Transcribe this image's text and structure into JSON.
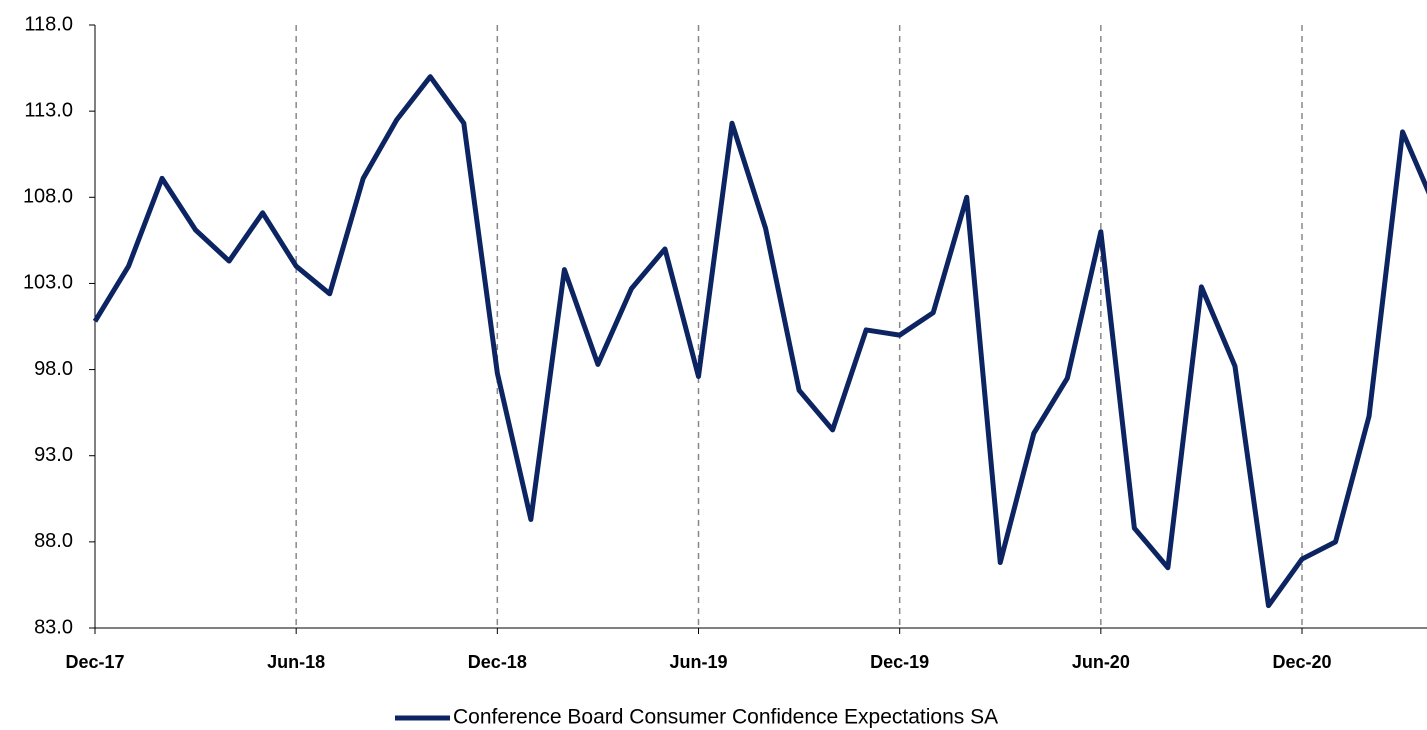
{
  "chart_data": {
    "type": "line",
    "categories": [
      "Dec-17",
      null,
      null,
      null,
      null,
      null,
      "Jun-18",
      null,
      null,
      null,
      null,
      null,
      "Dec-18",
      null,
      null,
      null,
      null,
      null,
      "Jun-19",
      null,
      null,
      null,
      null,
      null,
      "Dec-19",
      null,
      null,
      null,
      null,
      null,
      "Jun-20",
      null,
      null,
      null,
      null,
      null,
      "Dec-20",
      null,
      null,
      null,
      null
    ],
    "series": [
      {
        "name": "Conference Board Consumer Confidence Expectations SA",
        "color": "#0c2461",
        "values": [
          100.8,
          104.0,
          109.1,
          106.1,
          104.3,
          107.1,
          104.0,
          102.4,
          109.1,
          112.5,
          115.0,
          112.3,
          97.8,
          89.3,
          103.8,
          98.3,
          102.7,
          105.0,
          97.6,
          112.3,
          106.2,
          96.8,
          94.5,
          100.3,
          100.0,
          101.3,
          108.0,
          86.8,
          94.3,
          97.5,
          106.0,
          88.8,
          86.5,
          102.8,
          98.2,
          84.3,
          87.0,
          88.0,
          95.3,
          111.8,
          107.3
        ]
      }
    ],
    "ylim": [
      83,
      118
    ],
    "yticks": [
      {
        "value": 83,
        "label": "83.0"
      },
      {
        "value": 88,
        "label": "88.0"
      },
      {
        "value": 93,
        "label": "93.0"
      },
      {
        "value": 98,
        "label": "98.0"
      },
      {
        "value": 103,
        "label": "103.0"
      },
      {
        "value": 108,
        "label": "108.0"
      },
      {
        "value": 113,
        "label": "113.0"
      },
      {
        "value": 118,
        "label": "118.0"
      }
    ],
    "grid": true
  }
}
